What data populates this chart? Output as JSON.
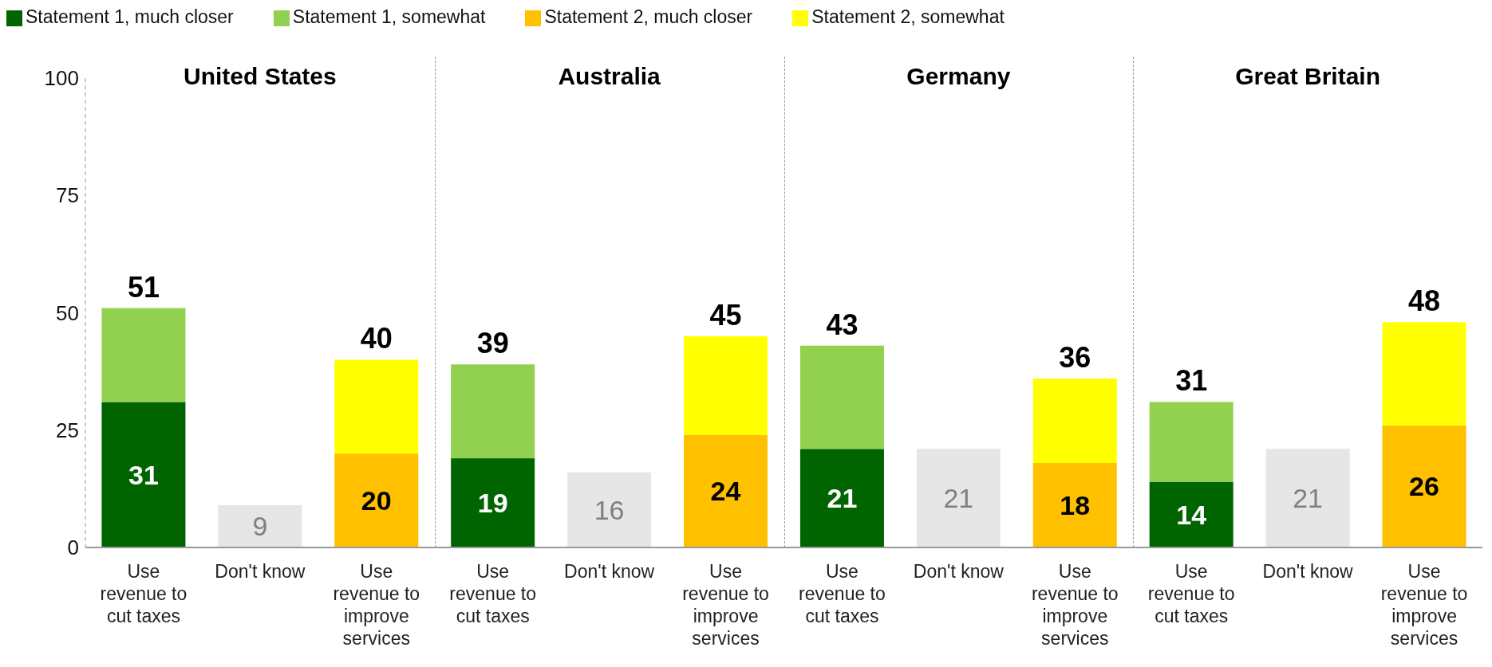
{
  "chart_data": {
    "type": "bar",
    "stacked": true,
    "categories": [
      "Use revenue to cut taxes",
      "Don't know",
      "Use revenue to improve services",
      "Use revenue to cut taxes",
      "Don't know",
      "Use revenue to improve services",
      "Use revenue to cut taxes",
      "Don't know",
      "Use revenue to improve services",
      "Use revenue to cut taxes",
      "Don't know",
      "Use revenue to improve services"
    ],
    "series": [
      {
        "name": "Statement 1, much closer",
        "color": "#006400",
        "values": [
          31,
          null,
          null,
          19,
          null,
          null,
          21,
          null,
          null,
          14,
          null,
          null
        ],
        "value_labels": [
          "31",
          null,
          null,
          "19",
          null,
          null,
          "21",
          null,
          null,
          "14",
          null,
          null
        ]
      },
      {
        "name": "Statement 1, somewhat",
        "color": "#92d050",
        "values": [
          20,
          null,
          null,
          20,
          null,
          null,
          22,
          null,
          null,
          17,
          null,
          null
        ]
      },
      {
        "name": "Statement 2, much closer",
        "color": "#ffc000",
        "values": [
          null,
          null,
          20,
          null,
          null,
          24,
          null,
          null,
          18,
          null,
          null,
          26
        ],
        "value_labels": [
          null,
          null,
          "20",
          null,
          null,
          "24",
          null,
          null,
          "18",
          null,
          null,
          "26"
        ]
      },
      {
        "name": "Statement 2, somewhat",
        "color": "#ffff00",
        "values": [
          null,
          null,
          20,
          null,
          null,
          21,
          null,
          null,
          18,
          null,
          null,
          22
        ]
      },
      {
        "color": "#e6e6e6",
        "values": [
          null,
          9,
          null,
          null,
          16,
          null,
          null,
          21,
          null,
          null,
          21,
          null
        ],
        "value_labels": [
          null,
          "9",
          null,
          null,
          "16",
          null,
          null,
          "21",
          null,
          null,
          "21",
          null
        ]
      }
    ],
    "totals": [
      "51",
      null,
      "40",
      "39",
      null,
      "45",
      "43",
      null,
      "36",
      "31",
      null,
      "48"
    ],
    "annotations": [
      "United States",
      "Australia",
      "Germany",
      "Great Britain"
    ],
    "ylim": [
      0,
      100
    ],
    "yticks": [
      0,
      25,
      50,
      75,
      100
    ],
    "legend": "top left"
  }
}
